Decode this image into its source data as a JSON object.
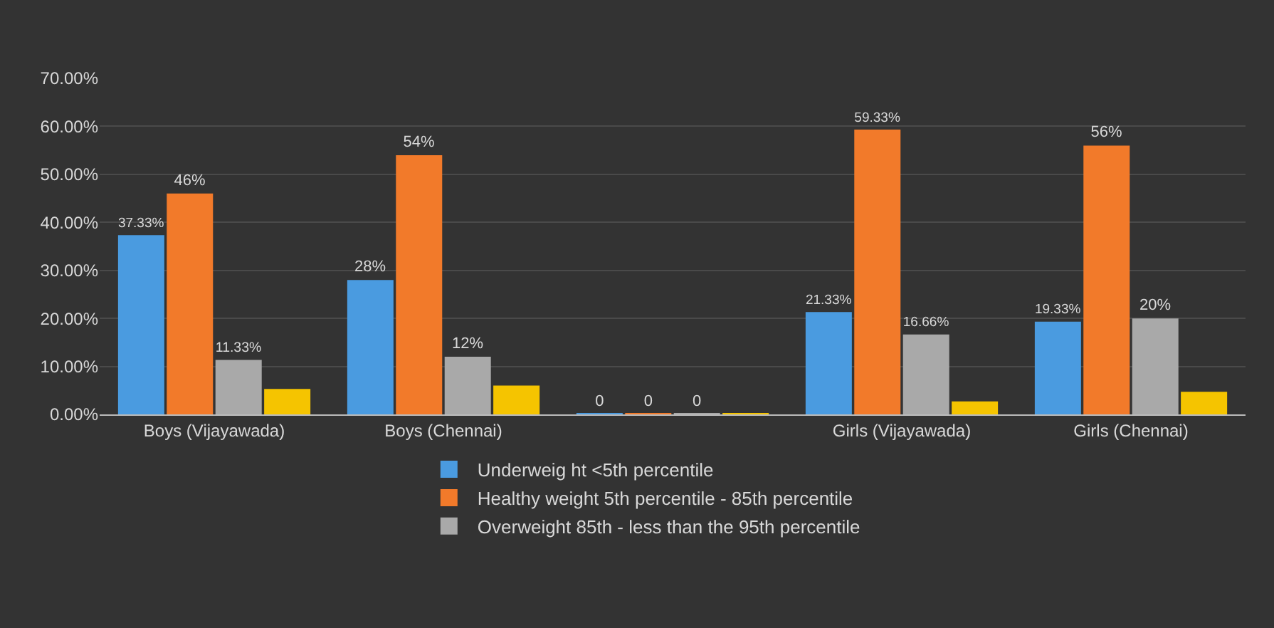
{
  "chart_data": {
    "type": "bar",
    "categories": [
      "Boys (Vijayawada)",
      "Boys (Chennai)",
      null,
      "Girls (Vijayawada)",
      "Girls (Chennai)"
    ],
    "series": [
      {
        "name": "Underweig ht <5th percentile",
        "color": "#4a9be0",
        "values": [
          37.33,
          28,
          0,
          21.33,
          19.33
        ],
        "value_labels": [
          "37.33%",
          "28%",
          "0",
          "21.33%",
          "19.33%"
        ]
      },
      {
        "name": "Healthy weight 5th percentile - 85th percentile",
        "color": "#f27a2a",
        "values": [
          46,
          54,
          0,
          59.33,
          56
        ],
        "value_labels": [
          "46%",
          "54%",
          "0",
          "59.33%",
          "56%"
        ]
      },
      {
        "name": "Overweight 85th - less than the 95th percentile",
        "color": "#a9a9a9",
        "values": [
          11.33,
          12,
          0,
          16.66,
          20
        ],
        "value_labels": [
          "11.33%",
          "12%",
          "0",
          "16.66%",
          "20%"
        ]
      },
      {
        "color": "#f5c400",
        "values": [
          5.3,
          6,
          0,
          2.7,
          4.7
        ]
      }
    ],
    "ylim": [
      0,
      70
    ],
    "yticks": [
      {
        "value": 0,
        "label": "0.00%"
      },
      {
        "value": 10,
        "label": "10.00%"
      },
      {
        "value": 20,
        "label": "20.00%"
      },
      {
        "value": 30,
        "label": "30.00%"
      },
      {
        "value": 40,
        "label": "40.00%"
      },
      {
        "value": 50,
        "label": "50.00%"
      },
      {
        "value": 60,
        "label": "60.00%"
      },
      {
        "value": 70,
        "label": "70.00%"
      }
    ],
    "grid": "y",
    "legend": "bottom"
  }
}
